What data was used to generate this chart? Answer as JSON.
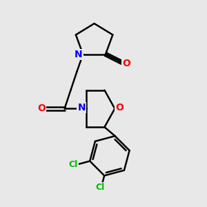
{
  "bg_color": "#e8e8e8",
  "bond_color": "#000000",
  "N_color": "#0000ff",
  "O_color": "#ff0000",
  "Cl_color": "#00bb00",
  "line_width": 1.8,
  "font_size": 10,
  "fig_size": [
    3.0,
    3.0
  ],
  "dpi": 100,
  "xlim": [
    0,
    10
  ],
  "ylim": [
    0,
    10
  ]
}
